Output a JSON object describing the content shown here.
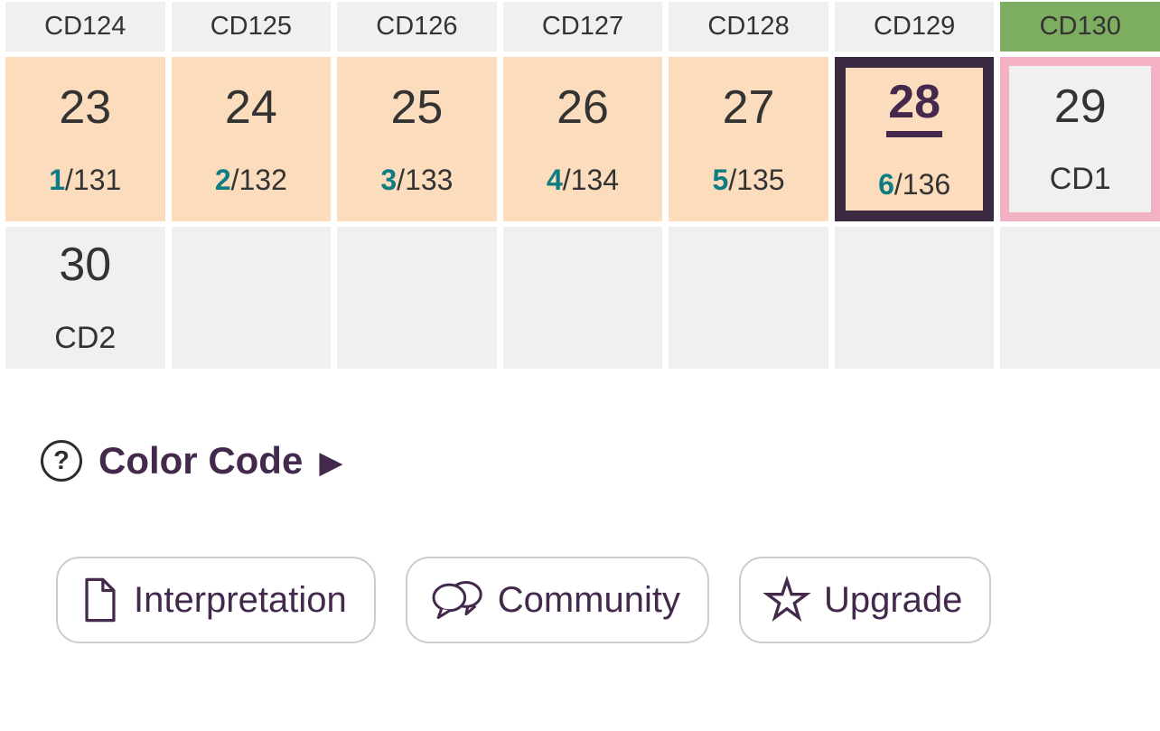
{
  "calendar": {
    "headers": [
      {
        "label": "CD124",
        "highlight": false
      },
      {
        "label": "CD125",
        "highlight": false
      },
      {
        "label": "CD126",
        "highlight": false
      },
      {
        "label": "CD127",
        "highlight": false
      },
      {
        "label": "CD128",
        "highlight": false
      },
      {
        "label": "CD129",
        "highlight": false
      },
      {
        "label": "CD130",
        "highlight": true
      }
    ],
    "rows": [
      [
        {
          "day": "23",
          "cd": "1",
          "rest": "/131",
          "bg": "peach"
        },
        {
          "day": "24",
          "cd": "2",
          "rest": "/132",
          "bg": "peach"
        },
        {
          "day": "25",
          "cd": "3",
          "rest": "/133",
          "bg": "peach"
        },
        {
          "day": "26",
          "cd": "4",
          "rest": "/134",
          "bg": "peach"
        },
        {
          "day": "27",
          "cd": "5",
          "rest": "/135",
          "bg": "peach"
        },
        {
          "day": "28",
          "cd": "6",
          "rest": "/136",
          "bg": "peach",
          "selected": true
        },
        {
          "day": "29",
          "label": "CD1",
          "bg": "gray",
          "outline": "pink"
        }
      ],
      [
        {
          "day": "30",
          "label": "CD2",
          "bg": "gray"
        },
        {
          "bg": "gray"
        },
        {
          "bg": "gray"
        },
        {
          "bg": "gray"
        },
        {
          "bg": "gray"
        },
        {
          "bg": "gray"
        },
        {
          "bg": "gray"
        }
      ]
    ]
  },
  "color_code": {
    "label": "Color Code",
    "help": "?",
    "arrow": "▶"
  },
  "actions": [
    {
      "label": "Interpretation",
      "icon": "document-icon"
    },
    {
      "label": "Community",
      "icon": "speech-bubbles-icon"
    },
    {
      "label": "Upgrade",
      "icon": "star-icon"
    }
  ],
  "colors": {
    "peach": "#fbdcbd",
    "cell_gray": "#f0f0f1",
    "header_gray": "#f0f0f1",
    "green": "#7cad60",
    "pink": "#f3b1c3",
    "purple": "#43294b",
    "purple_border": "#3b2a42",
    "teal": "#0e7d83",
    "text": "#333333",
    "button_border": "#cccccc"
  }
}
